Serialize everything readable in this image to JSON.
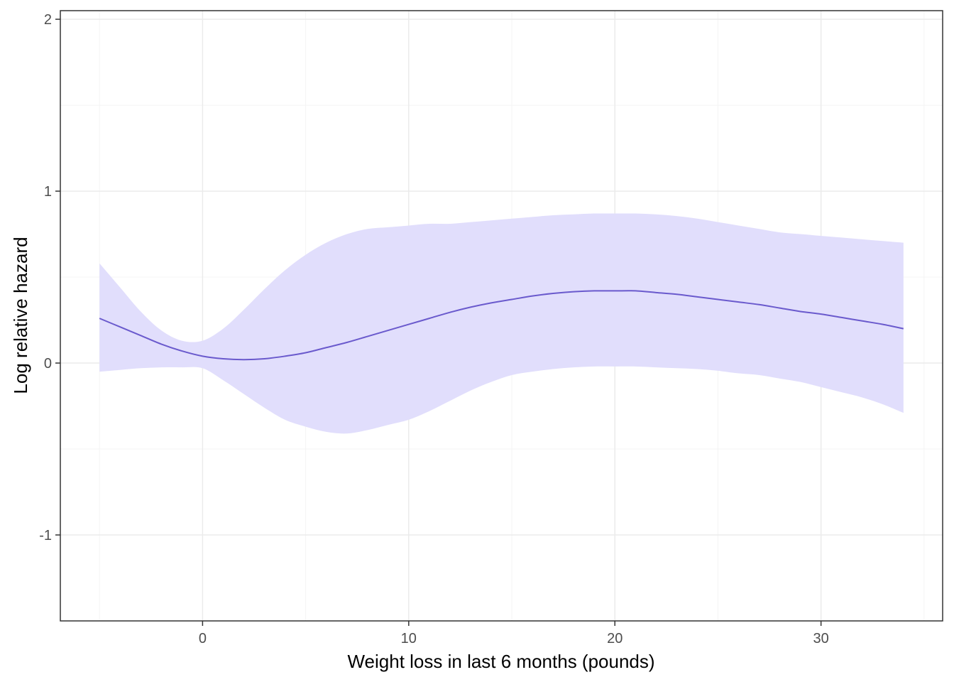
{
  "chart_data": {
    "type": "line",
    "title": "",
    "xlabel": "Weight loss in last 6 months (pounds)",
    "ylabel": "Log relative hazard",
    "xlim": [
      -6.9,
      35.9
    ],
    "ylim": [
      -1.5,
      2.05
    ],
    "x_ticks": [
      0,
      10,
      20,
      30
    ],
    "x_tick_labels": [
      "0",
      "10",
      "20",
      "30"
    ],
    "y_ticks": [
      -1,
      0,
      1,
      2
    ],
    "y_tick_labels": [
      "-1",
      "0",
      "1",
      "2"
    ],
    "grid": true,
    "legend": "none",
    "series": [
      {
        "x": [
          -5,
          -4,
          -3,
          -2,
          -1,
          0,
          1,
          2,
          3,
          4,
          5,
          6,
          7,
          8,
          9,
          10,
          11,
          12,
          13,
          14,
          15,
          16,
          17,
          18,
          19,
          20,
          21,
          22,
          23,
          24,
          25,
          26,
          27,
          28,
          29,
          30,
          31,
          32,
          33,
          34
        ],
        "y": [
          0.26,
          0.21,
          0.16,
          0.11,
          0.07,
          0.04,
          0.025,
          0.02,
          0.025,
          0.04,
          0.06,
          0.09,
          0.12,
          0.155,
          0.19,
          0.225,
          0.26,
          0.295,
          0.325,
          0.35,
          0.37,
          0.39,
          0.405,
          0.415,
          0.42,
          0.42,
          0.42,
          0.41,
          0.4,
          0.385,
          0.37,
          0.355,
          0.34,
          0.32,
          0.3,
          0.285,
          0.265,
          0.245,
          0.225,
          0.2
        ],
        "lower": [
          -0.05,
          -0.04,
          -0.03,
          -0.025,
          -0.025,
          -0.03,
          -0.1,
          -0.18,
          -0.26,
          -0.33,
          -0.37,
          -0.4,
          -0.41,
          -0.39,
          -0.36,
          -0.33,
          -0.28,
          -0.22,
          -0.16,
          -0.11,
          -0.07,
          -0.05,
          -0.035,
          -0.025,
          -0.02,
          -0.02,
          -0.02,
          -0.025,
          -0.03,
          -0.035,
          -0.045,
          -0.06,
          -0.07,
          -0.09,
          -0.11,
          -0.14,
          -0.17,
          -0.2,
          -0.24,
          -0.29
        ],
        "upper": [
          0.58,
          0.44,
          0.3,
          0.19,
          0.13,
          0.13,
          0.2,
          0.31,
          0.43,
          0.54,
          0.63,
          0.7,
          0.75,
          0.78,
          0.79,
          0.8,
          0.81,
          0.81,
          0.82,
          0.83,
          0.84,
          0.85,
          0.86,
          0.865,
          0.87,
          0.87,
          0.87,
          0.865,
          0.855,
          0.84,
          0.82,
          0.8,
          0.78,
          0.76,
          0.75,
          0.74,
          0.73,
          0.72,
          0.71,
          0.7
        ]
      }
    ]
  },
  "colors": {
    "line": "#6a5acd",
    "ribbon": "#e1defc",
    "grid_major": "#ebebeb",
    "grid_minor": "#f4f4f4",
    "panel_border": "#333333",
    "background": "#ffffff"
  }
}
